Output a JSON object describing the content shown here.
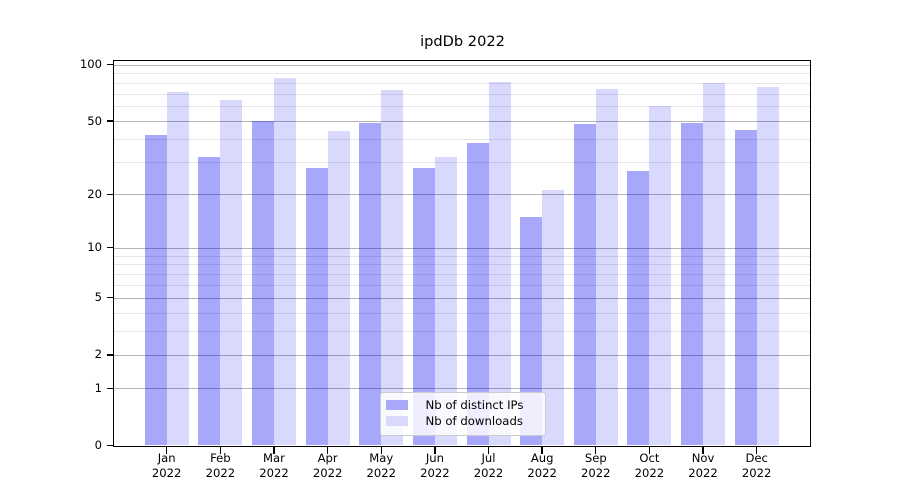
{
  "chart_data": {
    "type": "bar",
    "title": "ipdDb 2022",
    "categories": [
      {
        "month": "Jan",
        "year": "2022"
      },
      {
        "month": "Feb",
        "year": "2022"
      },
      {
        "month": "Mar",
        "year": "2022"
      },
      {
        "month": "Apr",
        "year": "2022"
      },
      {
        "month": "May",
        "year": "2022"
      },
      {
        "month": "Jun",
        "year": "2022"
      },
      {
        "month": "Jul",
        "year": "2022"
      },
      {
        "month": "Aug",
        "year": "2022"
      },
      {
        "month": "Sep",
        "year": "2022"
      },
      {
        "month": "Oct",
        "year": "2022"
      },
      {
        "month": "Nov",
        "year": "2022"
      },
      {
        "month": "Dec",
        "year": "2022"
      }
    ],
    "series": [
      {
        "name": "Nb of distinct IPs",
        "color": "#a9a9fa",
        "fill": "rgba(0,0,240,0.34)",
        "values": [
          42,
          32,
          50,
          28,
          49,
          28,
          38,
          15,
          48,
          27,
          49,
          45
        ]
      },
      {
        "name": "Nb of downloads",
        "color": "#d9d9fc",
        "fill": "rgba(0,0,240,0.15)",
        "values": [
          72,
          65,
          85,
          44,
          73,
          32,
          81,
          21,
          74,
          60,
          80,
          76
        ]
      }
    ],
    "y_axis": {
      "scale": "symlog",
      "major_ticks": [
        100,
        50,
        20,
        10,
        5,
        2,
        1,
        0
      ],
      "minor_ticks": [
        3,
        4,
        6,
        7,
        8,
        9,
        30,
        40,
        60,
        70,
        80,
        90
      ],
      "ylim": [
        0,
        103
      ]
    },
    "grid": true,
    "legend_position": "lower-center",
    "colors": {
      "major_grid": "#b3b3b3",
      "minor_grid": "#e6e6e6",
      "axis": "#000000",
      "background": "#ffffff"
    }
  }
}
